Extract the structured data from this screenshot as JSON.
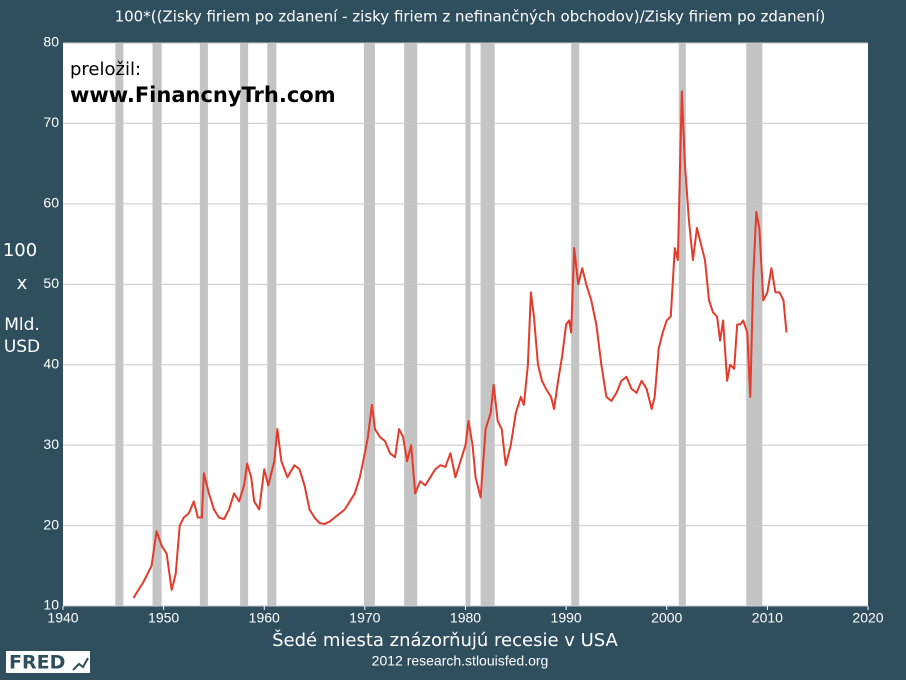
{
  "chart_data": {
    "type": "line",
    "title": "100*((Zisky firiem po zdanení - zisky firiem z nefinančných obchodov)/Zisky firiem po zdanení)",
    "y_label": [
      "100",
      "x",
      "Mld.",
      "USD"
    ],
    "annotations": [
      "preložil:",
      "www.FinancnyTrh.com"
    ],
    "note": "Šedé miesta znázorňujú recesie v USA",
    "source": "2012 research.stlouisfed.org",
    "logo": "FRED",
    "xlim": [
      1940,
      2020
    ],
    "xticks": [
      1940,
      1950,
      1960,
      1970,
      1980,
      1990,
      2000,
      2010,
      2020
    ],
    "ylim": [
      10,
      80
    ],
    "yticks": [
      10,
      20,
      30,
      40,
      50,
      60,
      70,
      80
    ],
    "grid": true,
    "recession_color": "#c4c4c4",
    "recessions": [
      [
        1945.2,
        1946.0
      ],
      [
        1948.9,
        1949.8
      ],
      [
        1953.6,
        1954.4
      ],
      [
        1957.6,
        1958.4
      ],
      [
        1960.3,
        1961.2
      ],
      [
        1969.9,
        1971.0
      ],
      [
        1973.9,
        1975.2
      ],
      [
        1980.0,
        1980.5
      ],
      [
        1981.5,
        1982.9
      ],
      [
        1990.5,
        1991.3
      ],
      [
        2001.2,
        2001.9
      ],
      [
        2007.9,
        2009.5
      ]
    ],
    "series": [
      {
        "name": "share",
        "color": "#e33b2c",
        "x": [
          1947.0,
          1948.0,
          1948.8,
          1949.3,
          1949.8,
          1950.3,
          1950.8,
          1951.2,
          1951.6,
          1952.0,
          1952.5,
          1953.0,
          1953.4,
          1953.8,
          1954.0,
          1954.5,
          1955.0,
          1955.5,
          1956.0,
          1956.5,
          1957.0,
          1957.5,
          1958.0,
          1958.3,
          1958.7,
          1959.0,
          1959.5,
          1960.0,
          1960.4,
          1961.0,
          1961.3,
          1961.7,
          1962.3,
          1963.0,
          1963.5,
          1964.0,
          1964.5,
          1965.0,
          1965.5,
          1966.0,
          1966.5,
          1967.0,
          1967.5,
          1968.0,
          1968.5,
          1969.0,
          1969.5,
          1970.0,
          1970.3,
          1970.7,
          1971.0,
          1971.5,
          1972.0,
          1972.5,
          1973.0,
          1973.4,
          1973.8,
          1974.2,
          1974.6,
          1975.0,
          1975.5,
          1976.0,
          1976.5,
          1977.0,
          1977.5,
          1978.0,
          1978.5,
          1979.0,
          1979.5,
          1980.0,
          1980.3,
          1980.7,
          1981.0,
          1981.5,
          1982.0,
          1982.5,
          1982.8,
          1983.2,
          1983.6,
          1984.0,
          1984.5,
          1985.0,
          1985.5,
          1985.8,
          1986.2,
          1986.5,
          1986.8,
          1987.2,
          1987.6,
          1988.0,
          1988.5,
          1988.8,
          1989.2,
          1989.6,
          1990.0,
          1990.3,
          1990.5,
          1990.8,
          1991.2,
          1991.6,
          1992.0,
          1992.5,
          1993.0,
          1993.5,
          1994.0,
          1994.5,
          1995.0,
          1995.5,
          1996.0,
          1996.5,
          1997.0,
          1997.5,
          1998.0,
          1998.5,
          1998.8,
          1999.2,
          1999.6,
          2000.0,
          2000.4,
          2000.8,
          2001.1,
          2001.5,
          2001.8,
          2002.2,
          2002.6,
          2003.0,
          2003.4,
          2003.8,
          2004.2,
          2004.6,
          2005.0,
          2005.3,
          2005.6,
          2006.0,
          2006.3,
          2006.7,
          2007.0,
          2007.3,
          2007.6,
          2008.0,
          2008.3,
          2008.6,
          2008.9,
          2009.2,
          2009.6,
          2010.0,
          2010.4,
          2010.8,
          2011.2,
          2011.6,
          2011.9
        ],
        "values": [
          11,
          13,
          15,
          19.3,
          17.5,
          16.5,
          12,
          14,
          20,
          21,
          21.5,
          23,
          21,
          21,
          26.5,
          24,
          22,
          21,
          20.8,
          22,
          24,
          23,
          25,
          27.7,
          26,
          23,
          22,
          27,
          25,
          28,
          32,
          28,
          26,
          27.5,
          27,
          25,
          22,
          21,
          20.3,
          20.2,
          20.5,
          21,
          21.5,
          22,
          23,
          24,
          26,
          29,
          31,
          35,
          32,
          31,
          30.5,
          29,
          28.5,
          32,
          31,
          28,
          30,
          24,
          25.5,
          25,
          26,
          27,
          27.5,
          27.3,
          29,
          26,
          28,
          30,
          33,
          30,
          26,
          23.5,
          32,
          34,
          37.5,
          33,
          32,
          27.5,
          30,
          34,
          36,
          35,
          40,
          49,
          46,
          40,
          38,
          37,
          36,
          34.5,
          38,
          41,
          45,
          45.5,
          44,
          54.5,
          50,
          52,
          50,
          48,
          45,
          40,
          36,
          35.5,
          36.5,
          38,
          38.5,
          37,
          36.5,
          38,
          37,
          34.5,
          36,
          42,
          44,
          45.5,
          46,
          54.5,
          53,
          74,
          65,
          58,
          53,
          57,
          55,
          53,
          48,
          46.5,
          46,
          43,
          45.5,
          38,
          40,
          39.5,
          45,
          45,
          45.5,
          44,
          36,
          51,
          59,
          57,
          48,
          49,
          52,
          49,
          49,
          48,
          44
        ]
      }
    ]
  }
}
